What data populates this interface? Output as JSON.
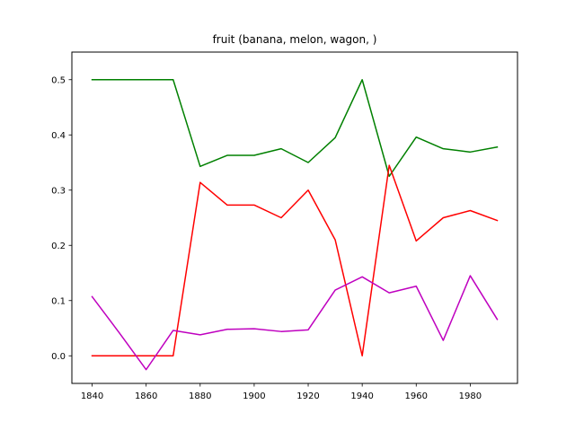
{
  "chart_data": {
    "type": "line",
    "title": "fruit (banana, melon, wagon, )",
    "xlabel": "",
    "ylabel": "",
    "xlim": [
      1832.5,
      1997.5
    ],
    "ylim": [
      -0.05,
      0.55
    ],
    "xticks": [
      1840,
      1860,
      1880,
      1900,
      1920,
      1940,
      1960,
      1980
    ],
    "yticks": [
      0.0,
      0.1,
      0.2,
      0.3,
      0.4,
      0.5
    ],
    "ytick_labels": [
      "0.0",
      "0.1",
      "0.2",
      "0.3",
      "0.4",
      "0.5"
    ],
    "grid": false,
    "legend": "none",
    "x": [
      1840,
      1850,
      1860,
      1870,
      1880,
      1890,
      1900,
      1910,
      1920,
      1930,
      1940,
      1950,
      1960,
      1970,
      1980,
      1990
    ],
    "series": [
      {
        "color": "#008000",
        "values": [
          0.5,
          0.5,
          0.5,
          0.5,
          0.343,
          0.363,
          0.363,
          0.375,
          0.35,
          0.395,
          0.5,
          0.325,
          0.396,
          0.375,
          0.369,
          0.378
        ]
      },
      {
        "color": "#ff0000",
        "values": [
          0.0,
          0.0,
          0.0,
          0.0,
          0.314,
          0.273,
          0.273,
          0.25,
          0.3,
          0.21,
          0.0,
          0.345,
          0.208,
          0.25,
          0.263,
          0.245
        ]
      },
      {
        "color": "#bf00bf",
        "values": [
          0.107,
          0.042,
          -0.025,
          0.046,
          0.038,
          0.048,
          0.049,
          0.044,
          0.047,
          0.119,
          0.143,
          0.114,
          0.126,
          0.028,
          0.145,
          0.066
        ]
      }
    ]
  }
}
